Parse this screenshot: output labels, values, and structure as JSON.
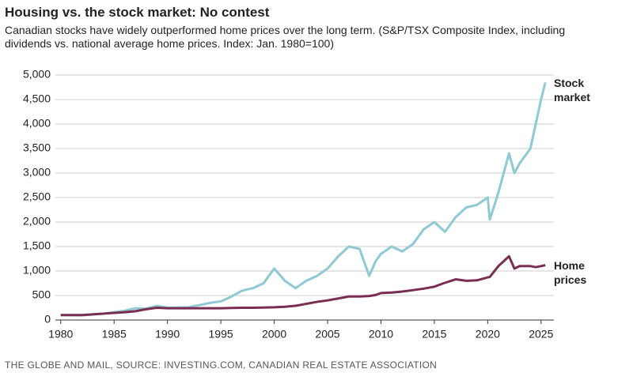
{
  "chart_data": {
    "type": "line",
    "title": "Housing vs. the stock market: No contest",
    "subtitle": "Canadian stocks have widely outperformed home prices over the long term. (S&P/TSX Composite Index, including dividends vs. national average home prices. Index: Jan. 1980=100)",
    "source": "THE GLOBE AND MAIL, SOURCE: INVESTING.COM, CANADIAN REAL ESTATE ASSOCIATION",
    "x": [
      1980,
      1982,
      1984,
      1986,
      1987,
      1988,
      1989,
      1990,
      1992,
      1994,
      1995,
      1996,
      1997,
      1998,
      1999,
      2000,
      2001,
      2002,
      2003,
      2004,
      2005,
      2006,
      2007,
      2008,
      2008.9,
      2009.5,
      2010,
      2011,
      2012,
      2013,
      2014,
      2015,
      2016,
      2017,
      2018,
      2019,
      2020,
      2020.2,
      2021,
      2022,
      2022.5,
      2023,
      2024,
      2024.5,
      2025,
      2025.4
    ],
    "series": [
      {
        "name": "Stock market",
        "color": "#8ec9d4",
        "values": [
          100,
          95,
          130,
          190,
          240,
          230,
          290,
          250,
          260,
          350,
          380,
          480,
          600,
          650,
          750,
          1050,
          800,
          650,
          800,
          900,
          1050,
          1300,
          1500,
          1450,
          900,
          1200,
          1350,
          1500,
          1400,
          1550,
          1850,
          2000,
          1800,
          2100,
          2300,
          2350,
          2500,
          2050,
          2600,
          3400,
          3000,
          3200,
          3500,
          4000,
          4500,
          4850
        ]
      },
      {
        "name": "Home prices",
        "color": "#7a2d52",
        "values": [
          100,
          100,
          130,
          160,
          180,
          220,
          250,
          240,
          240,
          240,
          240,
          245,
          250,
          250,
          255,
          260,
          270,
          290,
          330,
          370,
          400,
          440,
          480,
          480,
          490,
          510,
          550,
          560,
          580,
          610,
          640,
          680,
          760,
          830,
          800,
          810,
          870,
          880,
          1100,
          1300,
          1050,
          1100,
          1100,
          1080,
          1100,
          1120
        ]
      }
    ],
    "xlim": [
      1979.5,
      2026.2
    ],
    "xticks": [
      1980,
      1985,
      1990,
      1995,
      2000,
      2005,
      2010,
      2015,
      2020,
      2025
    ],
    "ylim": [
      0,
      5000
    ],
    "yticks": [
      0,
      500,
      {
        "value": 1000,
        "label": "1,000"
      },
      {
        "value": 1500,
        "label": "1,500"
      },
      {
        "value": 2000,
        "label": "2,000"
      },
      {
        "value": 2500,
        "label": "2,500"
      },
      {
        "value": 3000,
        "label": "3,000"
      },
      {
        "value": 3500,
        "label": "3,500"
      },
      {
        "value": 4000,
        "label": "4,000"
      },
      {
        "value": 4500,
        "label": "4,500"
      },
      {
        "value": 5000,
        "label": "5,000"
      }
    ],
    "grid": true
  }
}
